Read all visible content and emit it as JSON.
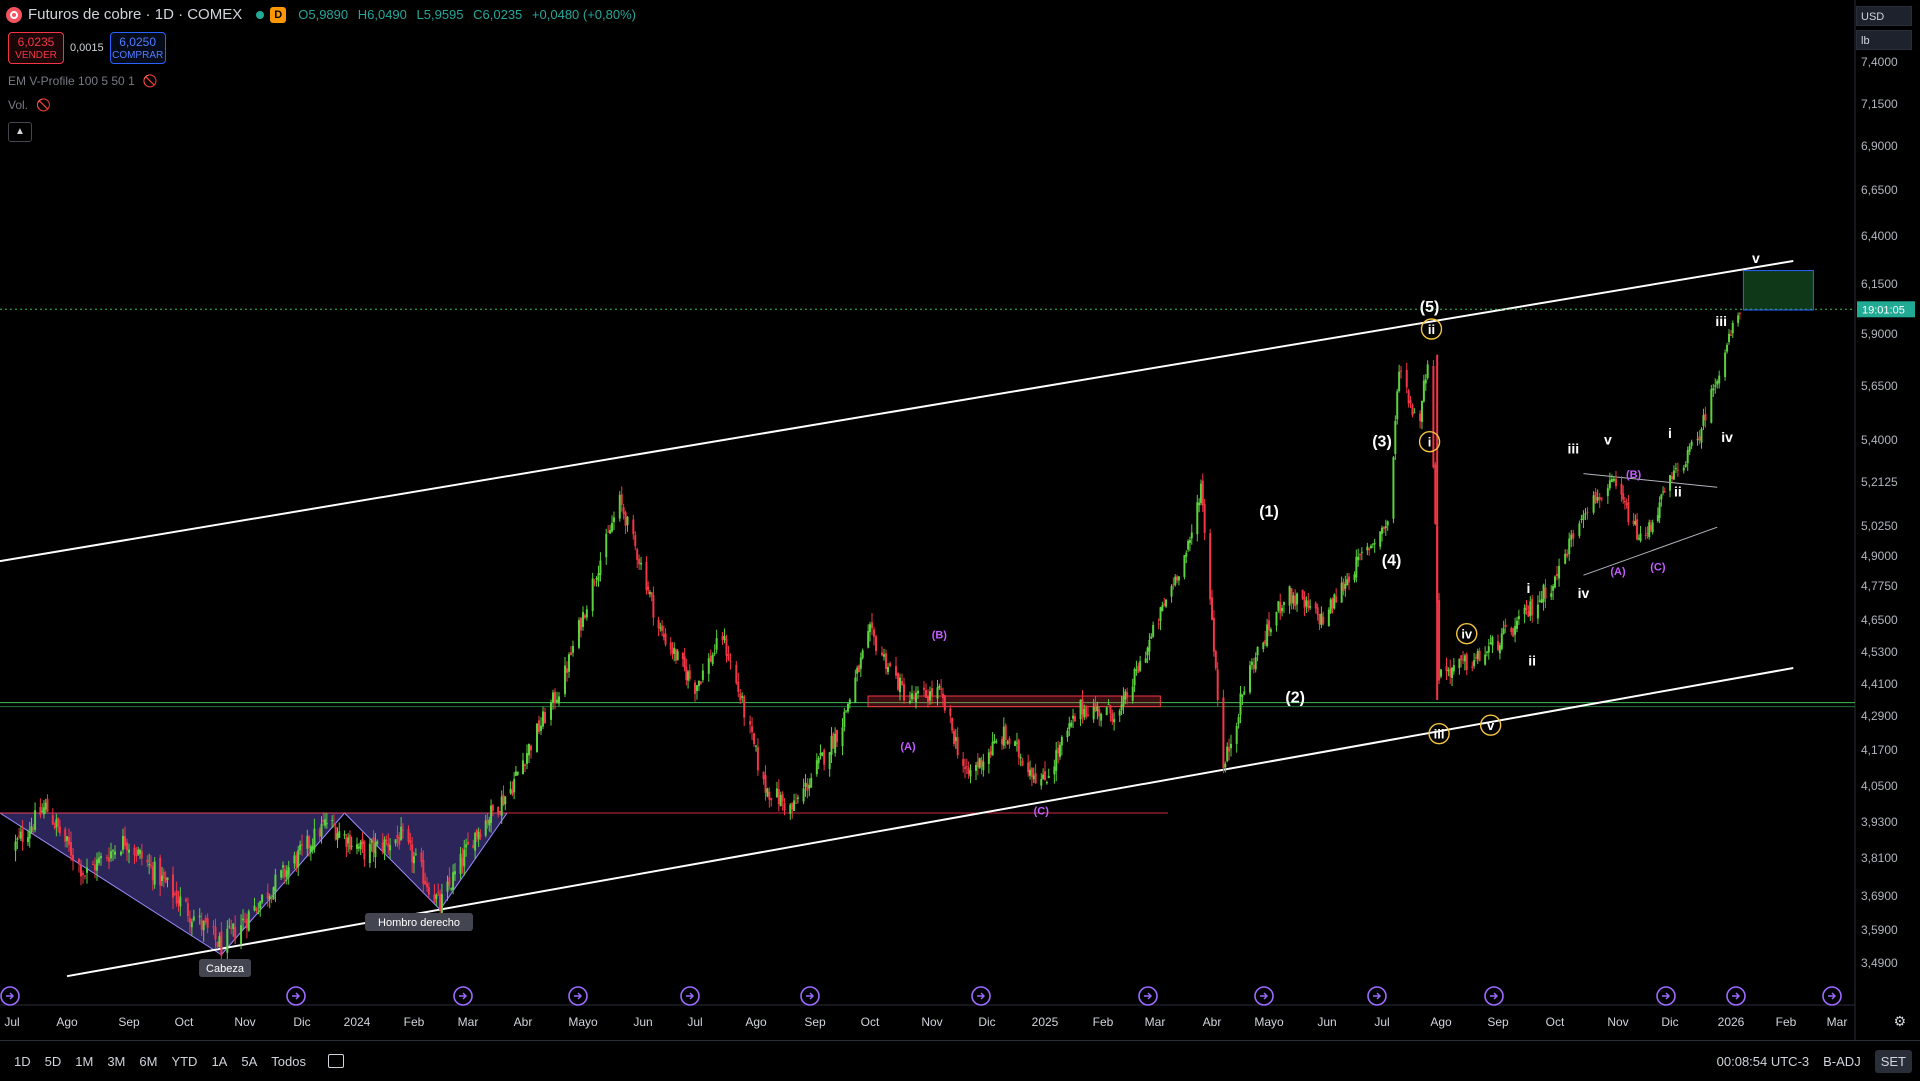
{
  "header": {
    "symbol": "Futuros de cobre · 1D · COMEX",
    "badge": "D",
    "ohlc": [
      "O5,9890",
      "H6,0490",
      "L5,9595",
      "C6,0235",
      "+0,0480 (+0,80%)"
    ]
  },
  "trade": {
    "sell_price": "6,0235",
    "sell_label": "VENDER",
    "spread": "0,0015",
    "buy_price": "6,0250",
    "buy_label": "COMPRAR"
  },
  "indicators": [
    {
      "label": "EM V-Profile 100 5 50 1",
      "icon": "eye-off-icon"
    },
    {
      "label": "Vol.",
      "icon": "eye-off-icon"
    }
  ],
  "currency": {
    "unit": "USD",
    "measure": "lb"
  },
  "price_axis": {
    "labels": [
      "7,4000",
      "7,1500",
      "6,9000",
      "6,6500",
      "6,4000",
      "6,1500",
      "5,9000",
      "5,6500",
      "5,4000",
      "5,2125",
      "5,0250",
      "4,9000",
      "4,7750",
      "4,6500",
      "4,5300",
      "4,4100",
      "4,2900",
      "4,1700",
      "4,0500",
      "3,9300",
      "3,8100",
      "3,6900",
      "3,5900",
      "3,4900"
    ],
    "countdown": "19:01:05"
  },
  "time_axis": [
    "Jul",
    "Ago",
    "Sep",
    "Oct",
    "Nov",
    "Dic",
    "2024",
    "Feb",
    "Mar",
    "Abr",
    "Mayo",
    "Jun",
    "Jul",
    "Ago",
    "Sep",
    "Oct",
    "Nov",
    "Dic",
    "2025",
    "Feb",
    "Mar",
    "Abr",
    "Mayo",
    "Jun",
    "Jul",
    "Ago",
    "Sep",
    "Oct",
    "Nov",
    "Dic",
    "2026",
    "Feb",
    "Mar"
  ],
  "bottom_bar": {
    "ranges": [
      "1D",
      "5D",
      "1M",
      "3M",
      "6M",
      "YTD",
      "1A",
      "5A",
      "Todos"
    ],
    "clock": "00:08:54 UTC-3",
    "adj": "B-ADJ",
    "set": "SET"
  },
  "chart_data": {
    "type": "candlestick",
    "title": "Futuros de cobre · 1D · COMEX",
    "ylim": [
      3.45,
      7.45
    ],
    "x_range": [
      "2023-07",
      "2026-03"
    ],
    "close_path": [
      [
        "2023-07-01",
        3.84
      ],
      [
        "2023-07-20",
        3.98
      ],
      [
        "2023-08-10",
        3.76
      ],
      [
        "2023-08-30",
        3.87
      ],
      [
        "2023-09-25",
        3.7
      ],
      [
        "2023-10-20",
        3.54
      ],
      [
        "2023-11-20",
        3.75
      ],
      [
        "2023-12-15",
        3.93
      ],
      [
        "2024-01-05",
        3.83
      ],
      [
        "2024-01-25",
        3.88
      ],
      [
        "2024-02-15",
        3.66
      ],
      [
        "2024-03-05",
        3.89
      ],
      [
        "2024-03-25",
        4.04
      ],
      [
        "2024-04-20",
        4.4
      ],
      [
        "2024-05-20",
        5.13
      ],
      [
        "2024-06-10",
        4.62
      ],
      [
        "2024-07-01",
        4.4
      ],
      [
        "2024-07-15",
        4.59
      ],
      [
        "2024-08-05",
        4.05
      ],
      [
        "2024-08-20",
        3.97
      ],
      [
        "2024-09-15",
        4.25
      ],
      [
        "2024-10-01",
        4.6
      ],
      [
        "2024-10-20",
        4.35
      ],
      [
        "2024-11-05",
        4.38
      ],
      [
        "2024-11-20",
        4.08
      ],
      [
        "2024-12-10",
        4.22
      ],
      [
        "2024-12-31",
        4.06
      ],
      [
        "2025-01-20",
        4.32
      ],
      [
        "2025-02-10",
        4.3
      ],
      [
        "2025-02-28",
        4.6
      ],
      [
        "2025-03-20",
        4.95
      ],
      [
        "2025-03-26",
        5.2
      ],
      [
        "2025-04-07",
        4.1
      ],
      [
        "2025-04-20",
        4.45
      ],
      [
        "2025-05-10",
        4.75
      ],
      [
        "2025-05-30",
        4.65
      ],
      [
        "2025-06-20",
        4.9
      ],
      [
        "2025-07-05",
        5.05
      ],
      [
        "2025-07-10",
        5.75
      ],
      [
        "2025-07-20",
        5.45
      ],
      [
        "2025-07-26",
        5.85
      ],
      [
        "2025-07-31",
        4.45
      ],
      [
        "2025-08-20",
        4.5
      ],
      [
        "2025-09-10",
        4.62
      ],
      [
        "2025-10-01",
        4.8
      ],
      [
        "2025-10-15",
        5.1
      ],
      [
        "2025-10-30",
        5.2
      ],
      [
        "2025-11-15",
        4.95
      ],
      [
        "2025-11-30",
        5.2
      ],
      [
        "2025-12-15",
        5.4
      ],
      [
        "2025-12-30",
        5.85
      ],
      [
        "2026-01-06",
        6.02
      ]
    ],
    "last_price": 6.0235,
    "lines": [
      {
        "name": "channel-upper",
        "from": [
          "2023-06-01",
          4.85
        ],
        "to": [
          "2026-02-05",
          6.27
        ]
      },
      {
        "name": "channel-lower",
        "from": [
          "2023-08-01",
          3.45
        ],
        "to": [
          "2026-02-05",
          4.47
        ]
      },
      {
        "name": "support",
        "value": 4.34
      },
      {
        "name": "neckline",
        "value": 3.96
      }
    ],
    "annotations": [
      "Cabeza",
      "Hombro derecho",
      "(1)",
      "(2)",
      "(3)",
      "(4)",
      "(5)",
      "(A)",
      "(B)",
      "(C)",
      "i",
      "ii",
      "iii",
      "iv",
      "v"
    ]
  }
}
